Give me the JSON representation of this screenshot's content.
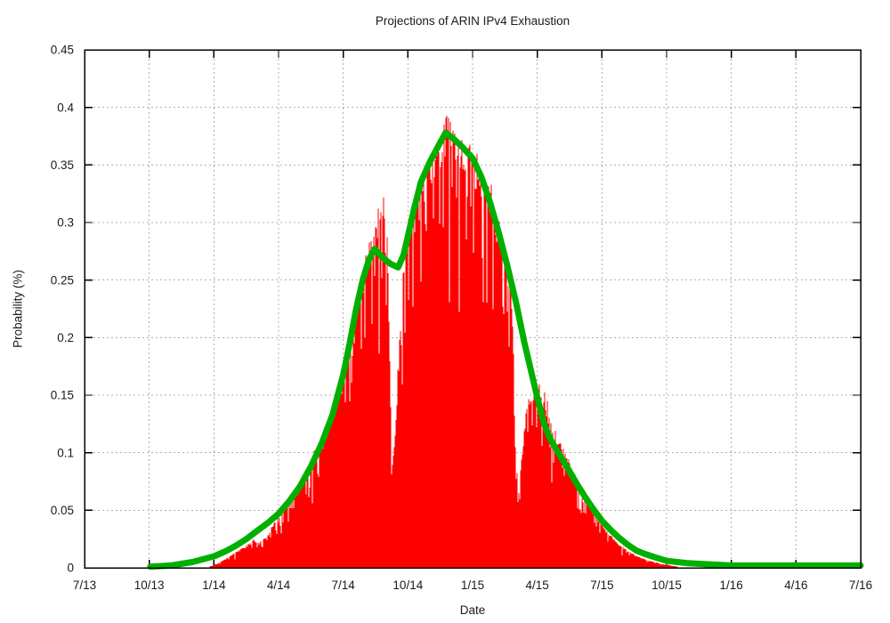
{
  "figure": {
    "background": "#ffffff"
  },
  "chart_data": {
    "type": "area",
    "title": "Projections of ARIN IPv4 Exhaustion",
    "xlabel": "Date",
    "ylabel": "Probability (%)",
    "legend": "none",
    "grid": "dotted",
    "grid_color": "#b0b0b0",
    "axis_color": "#000000",
    "xlim_months": [
      0,
      36
    ],
    "ylim": [
      0,
      0.45
    ],
    "x_tick_months": [
      0,
      3,
      6,
      9,
      12,
      15,
      18,
      21,
      24,
      27,
      30,
      33,
      36
    ],
    "x_tick_labels": [
      "7/13",
      "10/13",
      "1/14",
      "4/14",
      "7/14",
      "10/14",
      "1/15",
      "4/15",
      "7/15",
      "10/15",
      "1/16",
      "4/16",
      "7/16"
    ],
    "y_tick_values": [
      0,
      0.05,
      0.1,
      0.15,
      0.2,
      0.25,
      0.3,
      0.35,
      0.4,
      0.45
    ],
    "y_tick_labels": [
      "0",
      "0.05",
      "0.1",
      "0.15",
      "0.2",
      "0.25",
      "0.3",
      "0.35",
      "0.4",
      "0.45"
    ],
    "series": [
      {
        "id": "daily-exhaustion-probability-histogram",
        "render": "impulses",
        "color": "#ff0000",
        "noise_fraction": 0.05,
        "max_value": 0.401,
        "points": [
          [
            5.8,
            0.001
          ],
          [
            6.2,
            0.004
          ],
          [
            6.6,
            0.008
          ],
          [
            7.0,
            0.013
          ],
          [
            7.4,
            0.017
          ],
          [
            7.8,
            0.024
          ],
          [
            8.1,
            0.021
          ],
          [
            8.5,
            0.028
          ],
          [
            9.0,
            0.044
          ],
          [
            9.5,
            0.056
          ],
          [
            10.0,
            0.07
          ],
          [
            10.5,
            0.087
          ],
          [
            11.0,
            0.105
          ],
          [
            11.5,
            0.132
          ],
          [
            12.0,
            0.172
          ],
          [
            12.4,
            0.205
          ],
          [
            12.8,
            0.242
          ],
          [
            13.2,
            0.272
          ],
          [
            13.6,
            0.3
          ],
          [
            13.9,
            0.322
          ],
          [
            14.05,
            0.285
          ],
          [
            14.2,
            0.14
          ],
          [
            14.35,
            0.094
          ],
          [
            14.5,
            0.15
          ],
          [
            14.7,
            0.22
          ],
          [
            14.9,
            0.282
          ],
          [
            15.2,
            0.3
          ],
          [
            15.6,
            0.322
          ],
          [
            16.0,
            0.345
          ],
          [
            16.4,
            0.362
          ],
          [
            16.8,
            0.375
          ],
          [
            17.2,
            0.37
          ],
          [
            17.6,
            0.362
          ],
          [
            18.0,
            0.35
          ],
          [
            18.4,
            0.335
          ],
          [
            18.8,
            0.315
          ],
          [
            19.2,
            0.29
          ],
          [
            19.5,
            0.268
          ],
          [
            19.8,
            0.235
          ],
          [
            19.95,
            0.15
          ],
          [
            20.1,
            0.057
          ],
          [
            20.3,
            0.1
          ],
          [
            20.5,
            0.135
          ],
          [
            20.7,
            0.15
          ],
          [
            21.0,
            0.148
          ],
          [
            21.3,
            0.145
          ],
          [
            21.6,
            0.122
          ],
          [
            22.0,
            0.108
          ],
          [
            22.4,
            0.09
          ],
          [
            22.8,
            0.072
          ],
          [
            23.2,
            0.058
          ],
          [
            23.6,
            0.047
          ],
          [
            24.0,
            0.037
          ],
          [
            24.4,
            0.027
          ],
          [
            24.8,
            0.02
          ],
          [
            25.2,
            0.014
          ],
          [
            25.6,
            0.01
          ],
          [
            26.0,
            0.007
          ],
          [
            26.4,
            0.005
          ],
          [
            26.8,
            0.003
          ],
          [
            27.2,
            0.002
          ],
          [
            27.5,
            0.001
          ]
        ]
      },
      {
        "id": "smoothed-exhaustion-probability",
        "render": "line",
        "color": "#00b000",
        "stroke_width": 7,
        "points": [
          [
            3.05,
            0.001
          ],
          [
            4.0,
            0.002
          ],
          [
            5.0,
            0.005
          ],
          [
            6.0,
            0.01
          ],
          [
            6.5,
            0.014
          ],
          [
            7.0,
            0.019
          ],
          [
            7.5,
            0.025
          ],
          [
            8.0,
            0.032
          ],
          [
            8.5,
            0.039
          ],
          [
            9.0,
            0.047
          ],
          [
            9.5,
            0.058
          ],
          [
            10.0,
            0.071
          ],
          [
            10.5,
            0.088
          ],
          [
            11.0,
            0.108
          ],
          [
            11.5,
            0.133
          ],
          [
            12.0,
            0.168
          ],
          [
            12.3,
            0.195
          ],
          [
            12.6,
            0.225
          ],
          [
            12.9,
            0.25
          ],
          [
            13.2,
            0.268
          ],
          [
            13.45,
            0.277
          ],
          [
            13.8,
            0.27
          ],
          [
            14.2,
            0.264
          ],
          [
            14.55,
            0.261
          ],
          [
            14.8,
            0.272
          ],
          [
            15.0,
            0.288
          ],
          [
            15.3,
            0.313
          ],
          [
            15.6,
            0.335
          ],
          [
            16.0,
            0.352
          ],
          [
            16.4,
            0.366
          ],
          [
            16.75,
            0.378
          ],
          [
            17.1,
            0.373
          ],
          [
            17.5,
            0.366
          ],
          [
            18.0,
            0.356
          ],
          [
            18.4,
            0.34
          ],
          [
            18.8,
            0.318
          ],
          [
            19.2,
            0.292
          ],
          [
            19.6,
            0.263
          ],
          [
            20.0,
            0.232
          ],
          [
            20.4,
            0.196
          ],
          [
            20.7,
            0.172
          ],
          [
            21.0,
            0.148
          ],
          [
            21.3,
            0.126
          ],
          [
            21.6,
            0.112
          ],
          [
            22.0,
            0.099
          ],
          [
            22.4,
            0.087
          ],
          [
            22.8,
            0.074
          ],
          [
            23.2,
            0.062
          ],
          [
            23.6,
            0.051
          ],
          [
            24.0,
            0.041
          ],
          [
            24.4,
            0.033
          ],
          [
            24.8,
            0.026
          ],
          [
            25.2,
            0.02
          ],
          [
            25.6,
            0.015
          ],
          [
            26.0,
            0.012
          ],
          [
            26.5,
            0.009
          ],
          [
            27.0,
            0.006
          ],
          [
            27.5,
            0.005
          ],
          [
            28.0,
            0.004
          ],
          [
            29.0,
            0.003
          ],
          [
            30.0,
            0.002
          ],
          [
            32.0,
            0.002
          ],
          [
            34.0,
            0.002
          ],
          [
            36.0,
            0.002
          ]
        ]
      }
    ]
  }
}
